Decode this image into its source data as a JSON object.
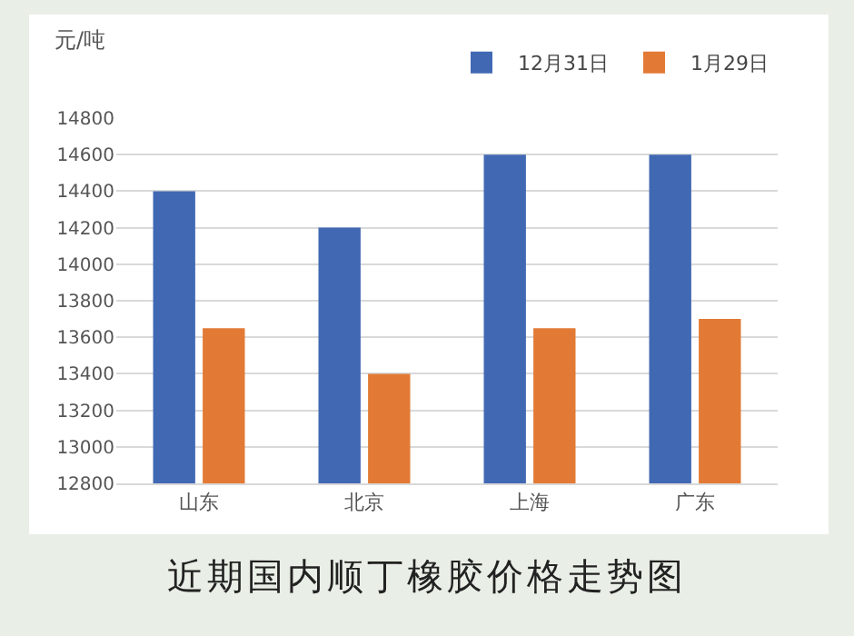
{
  "chart_data": {
    "type": "bar",
    "title": "近期国内顺丁橡胶价格走势图",
    "ylabel": "元/吨",
    "categories": [
      "山东",
      "北京",
      "上海",
      "广东"
    ],
    "series": [
      {
        "name": "12月31日",
        "color": "#4169b3",
        "values": [
          14400,
          14200,
          14600,
          14600
        ]
      },
      {
        "name": "1月29日",
        "color": "#e27a35",
        "values": [
          13650,
          13400,
          13650,
          13700
        ]
      }
    ],
    "ylim": [
      12800,
      14800
    ],
    "yticks": [
      12800,
      13000,
      13200,
      13400,
      13600,
      13800,
      14000,
      14200,
      14400,
      14600,
      14800
    ],
    "grid": "y",
    "legend": "top right"
  }
}
